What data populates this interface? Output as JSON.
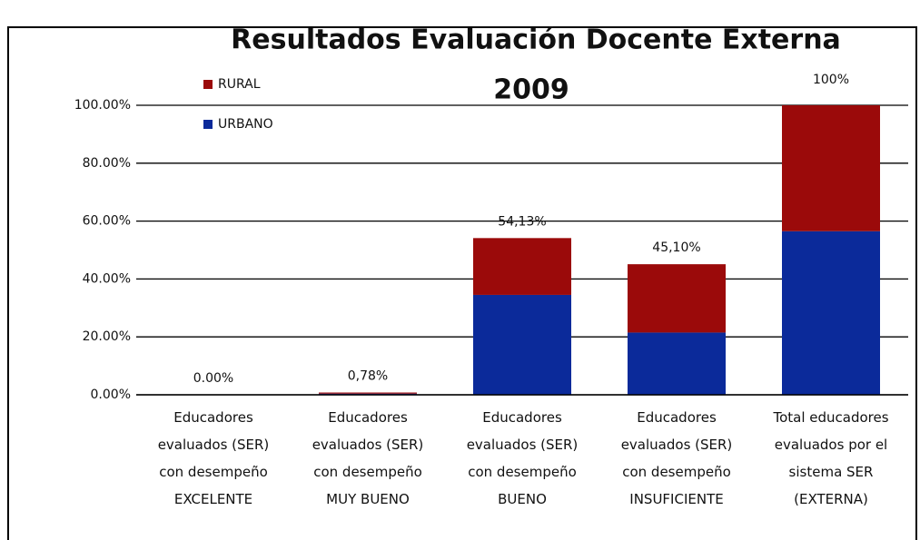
{
  "chart_data": {
    "type": "stacked_bar",
    "title": "Resultados Evaluación Docente Externa",
    "subtitle": "2009",
    "categories": [
      "Educadores\nevaluados (SER)\ncon desempeño\nEXCELENTE",
      "Educadores\nevaluados (SER)\ncon desempeño\nMUY BUENO",
      "Educadores\nevaluados (SER)\ncon desempeño\nBUENO",
      "Educadores\nevaluados (SER)\ncon desempeño\nINSUFICIENTE",
      "Total educadores\nevaluados por el\nsistema SER\n(EXTERNA)"
    ],
    "series": [
      {
        "name": "URBANO",
        "color": "#0b2a9a",
        "values": [
          0,
          0.4,
          34.5,
          21.5,
          56.5
        ]
      },
      {
        "name": "RURAL",
        "color": "#9b0a0a",
        "values": [
          0,
          0.38,
          19.63,
          23.6,
          43.5
        ]
      }
    ],
    "totals": [
      0,
      0.78,
      54.13,
      45.1,
      100
    ],
    "total_labels": [
      "0.00%",
      "0,78%",
      "54,13%",
      "45,10%",
      "100%"
    ],
    "ylim": [
      0,
      100
    ],
    "yticks": [
      {
        "value": 0,
        "label": "0.00%"
      },
      {
        "value": 20,
        "label": "20.00%"
      },
      {
        "value": 40,
        "label": "40.00%"
      },
      {
        "value": 60,
        "label": "60.00%"
      },
      {
        "value": 80,
        "label": "80.00%"
      },
      {
        "value": 100,
        "label": "100.00%"
      }
    ],
    "grid": true
  }
}
